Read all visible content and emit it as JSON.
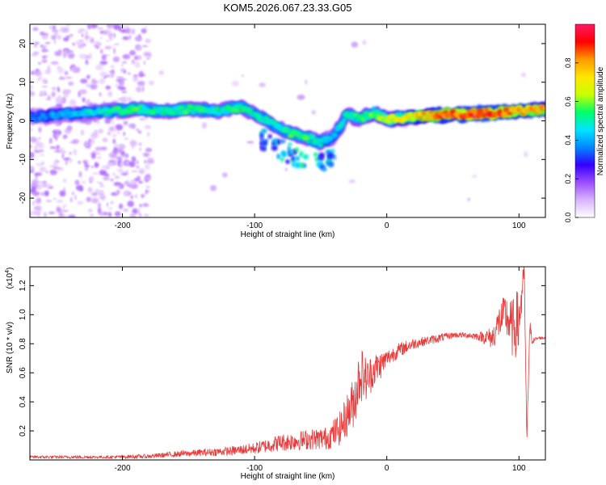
{
  "title": "KOM5.2026.067.23.33.G05",
  "chart_data": [
    {
      "type": "heatmap",
      "xlabel": "Height of straight line (km)",
      "ylabel": "Frequency (Hz)",
      "xlim": [
        -270,
        120
      ],
      "ylim": [
        -25,
        25
      ],
      "x_ticks": [
        -200,
        -100,
        0,
        100
      ],
      "y_ticks": [
        -20,
        -10,
        0,
        10,
        20
      ],
      "colorbar": {
        "label": "Normalized spectral amplitude",
        "range": [
          0,
          1
        ],
        "ticks": [
          "0.0",
          "0.2",
          "0.4",
          "0.6",
          "0.8"
        ],
        "colors": [
          "#ffffff",
          "#d9b3ff",
          "#9b4dff",
          "#3300ff",
          "#0088ff",
          "#00e5ff",
          "#00ff66",
          "#c8ff00",
          "#ffe600",
          "#ff9900",
          "#ff0000",
          "#ff1a66"
        ]
      },
      "ridge": {
        "x": [
          -270,
          -250,
          -230,
          -210,
          -190,
          -170,
          -150,
          -130,
          -110,
          -100,
          -90,
          -80,
          -70,
          -60,
          -50,
          -40,
          -30,
          -20,
          -10,
          0,
          20,
          40,
          60,
          80,
          100,
          120
        ],
        "frequency": [
          1.0,
          1.5,
          2.0,
          2.5,
          3.0,
          2.5,
          3.0,
          2.5,
          3.5,
          2.0,
          0.0,
          -2.0,
          -3.5,
          -4.5,
          -5.5,
          -4.0,
          1.5,
          0.5,
          2.0,
          0.5,
          1.0,
          1.5,
          1.8,
          2.0,
          2.5,
          3.0
        ],
        "amplitude": [
          0.35,
          0.4,
          0.45,
          0.5,
          0.55,
          0.5,
          0.55,
          0.5,
          0.55,
          0.5,
          0.5,
          0.5,
          0.55,
          0.55,
          0.5,
          0.45,
          0.5,
          0.55,
          0.6,
          0.65,
          0.75,
          0.85,
          0.9,
          0.9,
          0.85,
          0.8
        ]
      }
    },
    {
      "type": "line",
      "xlabel": "Height of straight line (km)",
      "ylabel": "SNR (10 * v/v)",
      "y_multiplier": "(x10",
      "y_multiplier_exp": "4",
      "y_multiplier_close": ")",
      "xlim": [
        -270,
        120
      ],
      "ylim": [
        0,
        1.33
      ],
      "x_ticks": [
        -200,
        -100,
        0,
        100
      ],
      "y_ticks": [
        "0.2",
        "0.4",
        "0.6",
        "0.8",
        "1.0",
        "1.2"
      ],
      "series": [
        {
          "color": "#e83a3a",
          "x": [
            -270,
            -240,
            -210,
            -180,
            -160,
            -140,
            -120,
            -100,
            -80,
            -60,
            -45,
            -35,
            -25,
            -20,
            -15,
            -10,
            -5,
            0,
            10,
            20,
            30,
            40,
            50,
            60,
            70,
            80,
            85,
            90,
            95,
            100,
            104,
            106,
            108,
            110,
            115,
            120
          ],
          "y": [
            0.02,
            0.02,
            0.02,
            0.025,
            0.04,
            0.05,
            0.06,
            0.08,
            0.12,
            0.14,
            0.15,
            0.22,
            0.4,
            0.6,
            0.55,
            0.62,
            0.65,
            0.7,
            0.76,
            0.8,
            0.82,
            0.84,
            0.86,
            0.86,
            0.85,
            0.84,
            0.95,
            1.0,
            0.9,
            0.95,
            1.3,
            0.1,
            0.9,
            0.82,
            0.84,
            0.84
          ],
          "noise": [
            0.01,
            0.01,
            0.01,
            0.015,
            0.02,
            0.025,
            0.03,
            0.04,
            0.06,
            0.07,
            0.08,
            0.12,
            0.18,
            0.2,
            0.15,
            0.12,
            0.1,
            0.06,
            0.05,
            0.04,
            0.03,
            0.03,
            0.02,
            0.02,
            0.03,
            0.08,
            0.12,
            0.15,
            0.2,
            0.25,
            0.05,
            0.05,
            0.1,
            0.02,
            0.01,
            0.01
          ]
        }
      ]
    }
  ]
}
